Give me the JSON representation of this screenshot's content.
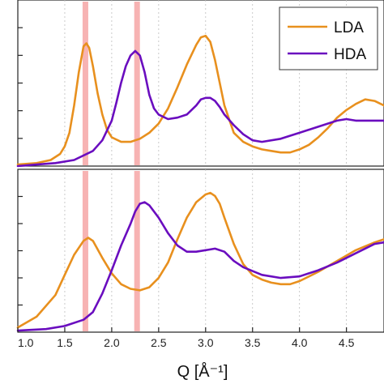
{
  "chart_data": [
    {
      "type": "line",
      "panel": "top",
      "xlim": [
        1.0,
        4.9
      ],
      "ylim": [
        0,
        1.0
      ],
      "grid": "vertical-dashed",
      "legend": "top-right",
      "highlight_bands": [
        1.72,
        2.27
      ],
      "series": [
        {
          "name": "LDA",
          "color": "#e8901e",
          "x": [
            1.0,
            1.2,
            1.35,
            1.45,
            1.5,
            1.55,
            1.6,
            1.65,
            1.7,
            1.73,
            1.76,
            1.8,
            1.85,
            1.9,
            1.95,
            2.0,
            2.1,
            2.2,
            2.3,
            2.4,
            2.5,
            2.6,
            2.7,
            2.8,
            2.9,
            2.95,
            3.0,
            3.05,
            3.1,
            3.15,
            3.2,
            3.3,
            3.4,
            3.5,
            3.6,
            3.7,
            3.8,
            3.9,
            4.0,
            4.1,
            4.2,
            4.3,
            4.4,
            4.5,
            4.6,
            4.7,
            4.8,
            4.9
          ],
          "y": [
            0.01,
            0.02,
            0.04,
            0.08,
            0.13,
            0.22,
            0.4,
            0.62,
            0.79,
            0.81,
            0.78,
            0.66,
            0.48,
            0.34,
            0.24,
            0.19,
            0.16,
            0.16,
            0.18,
            0.22,
            0.28,
            0.38,
            0.52,
            0.67,
            0.8,
            0.85,
            0.86,
            0.82,
            0.7,
            0.55,
            0.4,
            0.22,
            0.16,
            0.13,
            0.11,
            0.1,
            0.09,
            0.09,
            0.11,
            0.14,
            0.19,
            0.25,
            0.32,
            0.37,
            0.41,
            0.44,
            0.43,
            0.4
          ]
        },
        {
          "name": "HDA",
          "color": "#6a0dbf",
          "x": [
            1.0,
            1.2,
            1.4,
            1.6,
            1.8,
            1.9,
            2.0,
            2.05,
            2.1,
            2.15,
            2.2,
            2.25,
            2.3,
            2.35,
            2.4,
            2.45,
            2.5,
            2.6,
            2.7,
            2.8,
            2.9,
            2.95,
            3.0,
            3.05,
            3.1,
            3.15,
            3.2,
            3.3,
            3.4,
            3.5,
            3.6,
            3.8,
            4.0,
            4.2,
            4.4,
            4.5,
            4.6,
            4.7,
            4.8,
            4.9
          ],
          "y": [
            0.0,
            0.01,
            0.02,
            0.04,
            0.1,
            0.17,
            0.3,
            0.42,
            0.55,
            0.66,
            0.73,
            0.76,
            0.73,
            0.62,
            0.47,
            0.38,
            0.34,
            0.31,
            0.32,
            0.34,
            0.4,
            0.44,
            0.45,
            0.45,
            0.43,
            0.39,
            0.34,
            0.27,
            0.21,
            0.17,
            0.16,
            0.18,
            0.22,
            0.26,
            0.3,
            0.31,
            0.3,
            0.3,
            0.3,
            0.3
          ]
        }
      ]
    },
    {
      "type": "line",
      "panel": "bottom",
      "xlim": [
        1.0,
        4.9
      ],
      "ylim": [
        0,
        1.0
      ],
      "xlabel": "Q [Å⁻¹]",
      "xticks": [
        1.0,
        1.5,
        2.0,
        2.5,
        3.0,
        3.5,
        4.0,
        4.5
      ],
      "xtick_labels": [
        "1.0",
        "1.5",
        "2.0",
        "2.5",
        "3.0",
        "3.5",
        "4.0",
        "4.5"
      ],
      "grid": "vertical-dashed",
      "highlight_bands": [
        1.72,
        2.27
      ],
      "series": [
        {
          "name": "LDA",
          "color": "#e8901e",
          "x": [
            1.0,
            1.2,
            1.4,
            1.5,
            1.6,
            1.7,
            1.75,
            1.8,
            1.9,
            2.0,
            2.1,
            2.2,
            2.3,
            2.4,
            2.5,
            2.6,
            2.7,
            2.8,
            2.9,
            3.0,
            3.05,
            3.1,
            3.15,
            3.2,
            3.3,
            3.4,
            3.5,
            3.6,
            3.7,
            3.8,
            3.9,
            4.0,
            4.2,
            4.4,
            4.6,
            4.8,
            4.9
          ],
          "y": [
            0.03,
            0.1,
            0.24,
            0.37,
            0.5,
            0.59,
            0.61,
            0.59,
            0.48,
            0.38,
            0.31,
            0.28,
            0.27,
            0.29,
            0.35,
            0.45,
            0.6,
            0.74,
            0.84,
            0.89,
            0.9,
            0.88,
            0.83,
            0.74,
            0.57,
            0.44,
            0.37,
            0.34,
            0.32,
            0.31,
            0.31,
            0.33,
            0.39,
            0.46,
            0.53,
            0.58,
            0.6
          ]
        },
        {
          "name": "HDA",
          "color": "#6a0dbf",
          "x": [
            1.0,
            1.3,
            1.5,
            1.7,
            1.8,
            1.9,
            2.0,
            2.1,
            2.2,
            2.25,
            2.3,
            2.35,
            2.4,
            2.5,
            2.6,
            2.7,
            2.8,
            2.9,
            3.0,
            3.1,
            3.2,
            3.3,
            3.4,
            3.6,
            3.8,
            4.0,
            4.2,
            4.4,
            4.6,
            4.8,
            4.9
          ],
          "y": [
            0.01,
            0.02,
            0.04,
            0.08,
            0.13,
            0.25,
            0.4,
            0.56,
            0.7,
            0.78,
            0.83,
            0.84,
            0.82,
            0.74,
            0.64,
            0.56,
            0.52,
            0.52,
            0.53,
            0.54,
            0.52,
            0.46,
            0.42,
            0.37,
            0.35,
            0.36,
            0.4,
            0.45,
            0.51,
            0.57,
            0.58
          ]
        }
      ]
    }
  ]
}
